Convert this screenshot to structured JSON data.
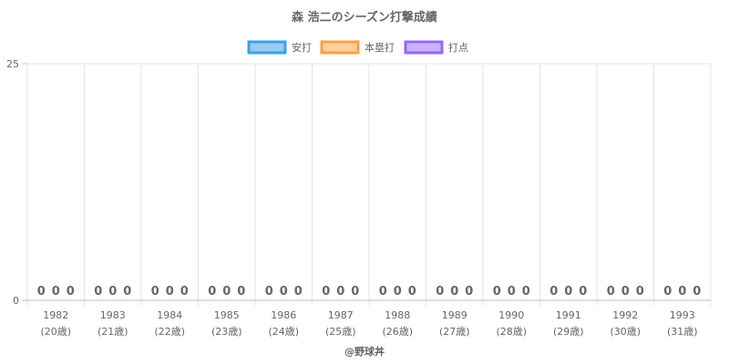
{
  "chart_data": {
    "type": "bar",
    "title": "森 浩二のシーズン打撃成績",
    "categories": [
      "1982",
      "1983",
      "1984",
      "1985",
      "1986",
      "1987",
      "1988",
      "1989",
      "1990",
      "1991",
      "1992",
      "1993"
    ],
    "category_sublabels": [
      "(20歳)",
      "(21歳)",
      "(22歳)",
      "(23歳)",
      "(24歳)",
      "(25歳)",
      "(26歳)",
      "(27歳)",
      "(28歳)",
      "(29歳)",
      "(30歳)",
      "(31歳)"
    ],
    "series": [
      {
        "name": "安打",
        "values": [
          0,
          0,
          0,
          0,
          0,
          0,
          0,
          0,
          0,
          0,
          0,
          0
        ],
        "fill": "#9ccbef",
        "stroke": "#36a2eb"
      },
      {
        "name": "本塁打",
        "values": [
          0,
          0,
          0,
          0,
          0,
          0,
          0,
          0,
          0,
          0,
          0,
          0
        ],
        "fill": "#ffcf9f",
        "stroke": "#ff9f40"
      },
      {
        "name": "打点",
        "values": [
          0,
          0,
          0,
          0,
          0,
          0,
          0,
          0,
          0,
          0,
          0,
          0
        ],
        "fill": "#c9b3fb",
        "stroke": "#9966ff"
      }
    ],
    "ylim": [
      0,
      25
    ],
    "y_ticks": [
      "0",
      "25"
    ],
    "grid": true,
    "legend_position": "top",
    "credit": "@野球丼"
  }
}
